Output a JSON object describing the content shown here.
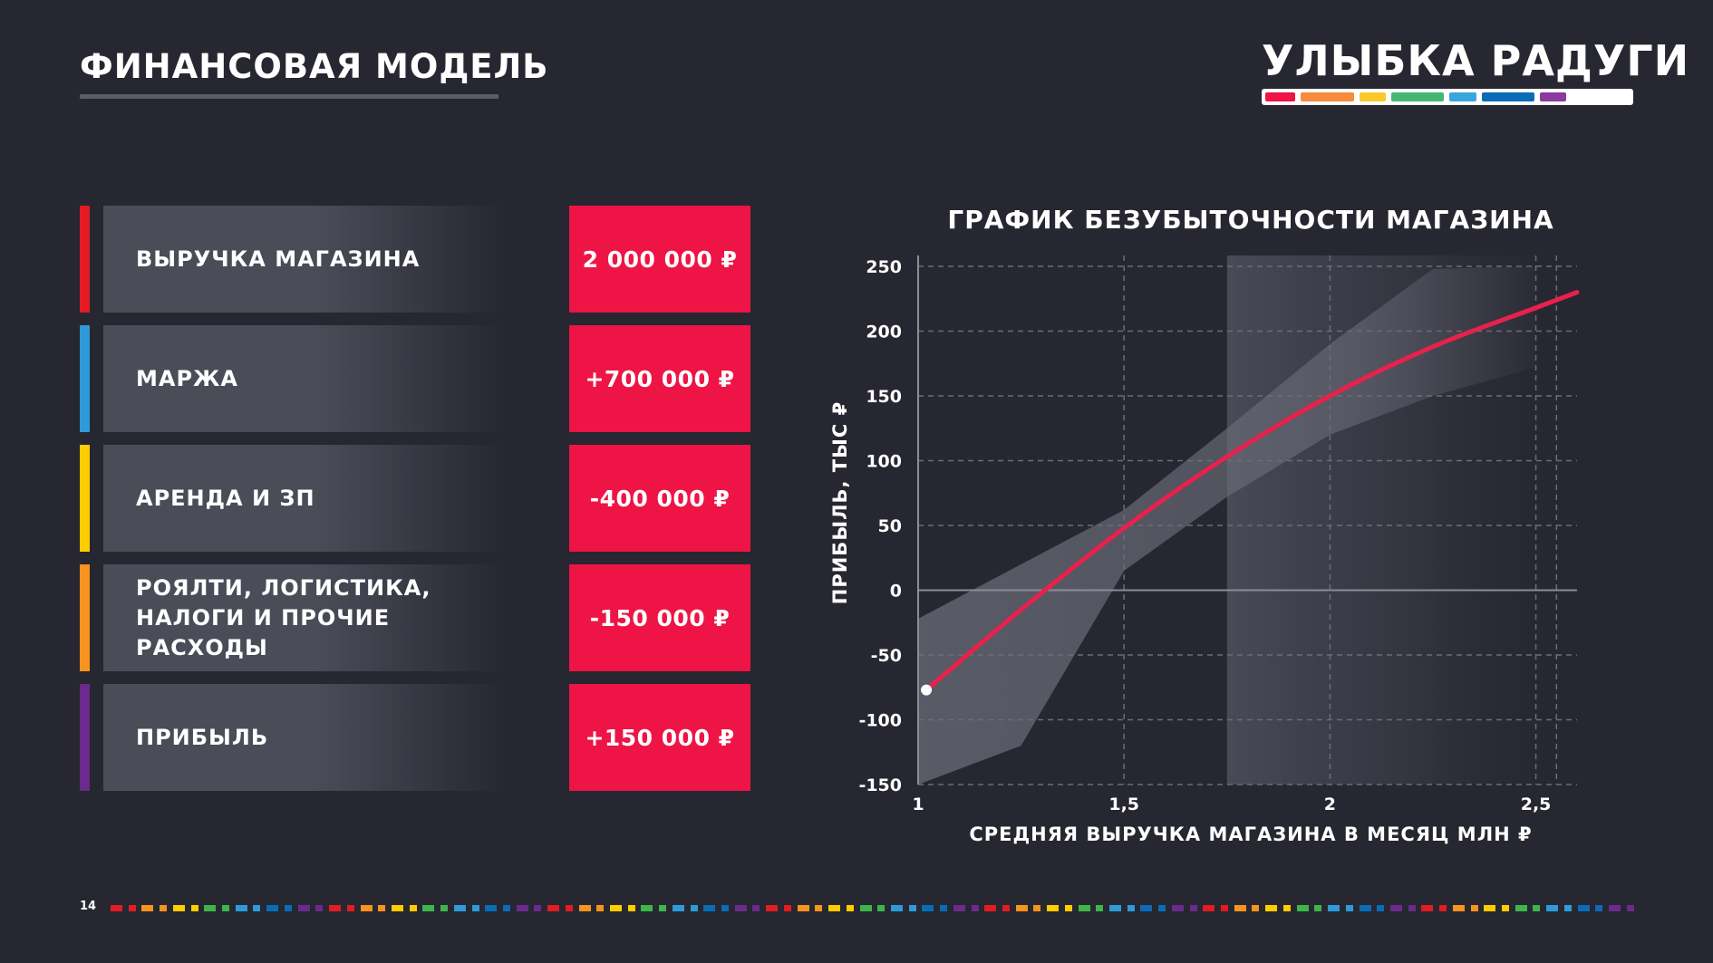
{
  "header": {
    "title": "ФИНАНСОВАЯ МОДЕЛЬ",
    "logo_text": "УЛЫБКА РАДУГИ",
    "logo_colors": [
      "#ee1446",
      "#f68c3c",
      "#fbc92a",
      "#44b873",
      "#3aa6df",
      "#0a6bb7",
      "#8b3aa0"
    ]
  },
  "rows": [
    {
      "label": "ВЫРУЧКА МАГАЗИНА",
      "value": "2 000 000 ₽",
      "accent": "#e31b23"
    },
    {
      "label": "МАРЖА",
      "value": "+700 000 ₽",
      "accent": "#2e9ad8"
    },
    {
      "label": "АРЕНДА И ЗП",
      "value": "-400 000 ₽",
      "accent": "#ffcc00"
    },
    {
      "label": "РОЯЛТИ, ЛОГИСТИКА,\nНАЛОГИ И ПРОЧИЕ РАСХОДЫ",
      "value": "-150 000 ₽",
      "accent": "#f7931e"
    },
    {
      "label": "ПРИБЫЛЬ",
      "value": "+150 000 ₽",
      "accent": "#6a2b8c"
    }
  ],
  "chart_data": {
    "type": "line",
    "title": "ГРАФИК БЕЗУБЫТОЧНОСТИ МАГАЗИНА",
    "xlabel": "СРЕДНЯЯ ВЫРУЧКА МАГАЗИНА В МЕСЯЦ МЛН ₽",
    "ylabel": "ПРИБЫЛЬ, ТЫС ₽",
    "xlim": [
      1,
      2.6
    ],
    "ylim": [
      -150,
      250
    ],
    "x_ticks": [
      1,
      1.5,
      2,
      2.5
    ],
    "x_tick_labels": [
      "1",
      "1,5",
      "2",
      "2,5"
    ],
    "y_ticks": [
      250,
      200,
      150,
      100,
      50,
      0,
      -50,
      -100,
      -150
    ],
    "y_tick_labels": [
      "250",
      "200",
      "150",
      "100",
      "50",
      "0",
      "-50",
      "-100",
      "-150"
    ],
    "grid": true,
    "highlight_x_range": [
      1.75,
      2.55
    ],
    "series": [
      {
        "color": "#e8214c",
        "x": [
          1.02,
          1.25,
          1.5,
          1.75,
          2.0,
          2.25,
          2.5,
          2.6
        ],
        "y": [
          -77,
          -15,
          48,
          103,
          150,
          188,
          218,
          230
        ]
      }
    ],
    "band": {
      "x": [
        1.0,
        1.25,
        1.5,
        1.75,
        2.0,
        2.25,
        2.5
      ],
      "upper": [
        -22,
        20,
        62,
        125,
        190,
        248,
        255
      ],
      "lower": [
        -150,
        -120,
        15,
        72,
        120,
        150,
        172
      ]
    },
    "start_marker": {
      "x": 1.02,
      "y": -77
    }
  },
  "footer": {
    "page_number": "14",
    "dot_colors": [
      "#e31b23",
      "#f7931e",
      "#ffcc00",
      "#3db54a",
      "#2e9ad8",
      "#0a6bb7",
      "#6a2b8c"
    ]
  }
}
